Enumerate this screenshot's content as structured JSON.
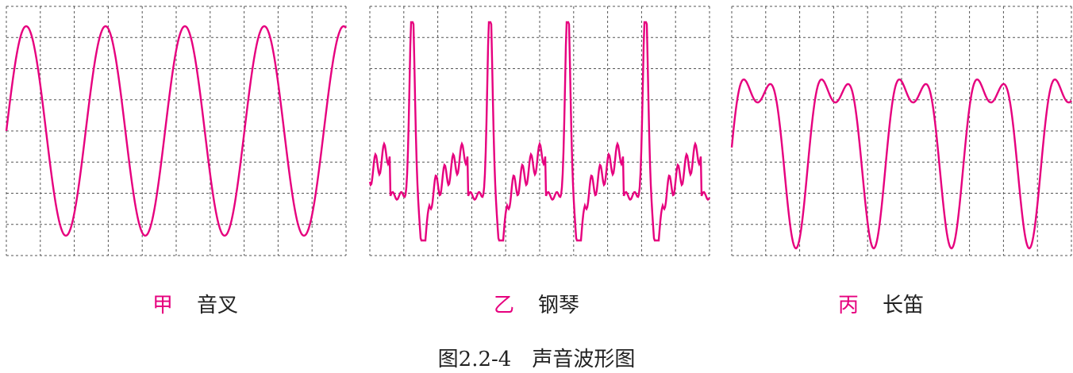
{
  "colors": {
    "waveform": "#e6007e",
    "grid": "#555555",
    "letter": "#e6007e",
    "text": "#222222"
  },
  "panels": [
    {
      "id": "jia",
      "letter": "甲",
      "name": "音叉",
      "waveform_type": "sine"
    },
    {
      "id": "yi",
      "letter": "乙",
      "name": "钢琴",
      "waveform_type": "complex-piano"
    },
    {
      "id": "bing",
      "letter": "丙",
      "name": "长笛",
      "waveform_type": "double-peak-flute"
    }
  ],
  "caption": "图2.2-4　声音波形图"
}
